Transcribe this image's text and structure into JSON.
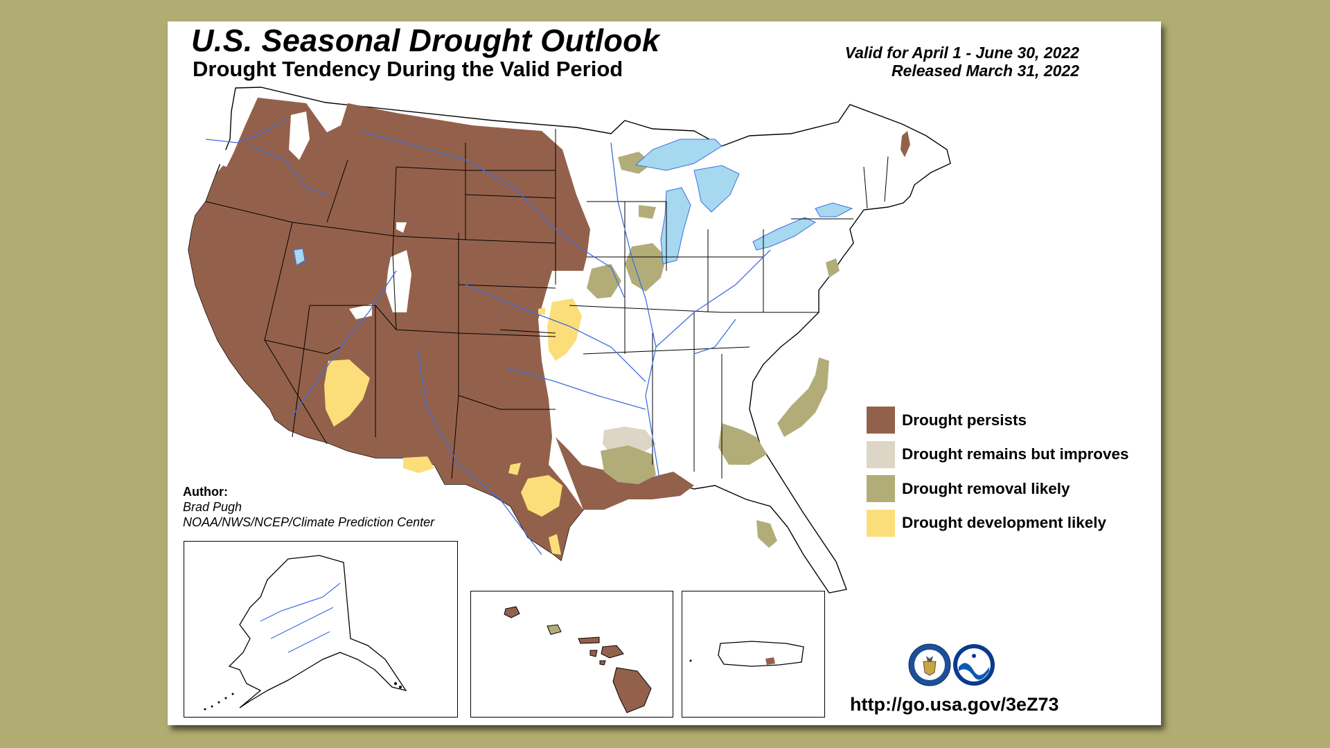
{
  "header": {
    "title": "U.S. Seasonal Drought Outlook",
    "subtitle": "Drought Tendency During the Valid Period",
    "valid": "Valid for April 1 - June 30, 2022",
    "released": "Released March 31, 2022"
  },
  "author": {
    "label": "Author:",
    "name": "Brad Pugh",
    "org": "NOAA/NWS/NCEP/Climate Prediction Center"
  },
  "legend": {
    "items": [
      {
        "label": "Drought persists",
        "color": "#93614b"
      },
      {
        "label": "Drought remains but improves",
        "color": "#ddd5c5"
      },
      {
        "label": "Drought removal likely",
        "color": "#b2ad78"
      },
      {
        "label": "Drought development likely",
        "color": "#fbde7a"
      }
    ]
  },
  "colors": {
    "background": "#b1ad72",
    "water": "#a6d8f0",
    "rivers": "#3c6ee0",
    "borders": "#000000"
  },
  "logos": [
    "department-of-commerce-seal",
    "noaa-logo"
  ],
  "url": "http://go.usa.gov/3eZ73"
}
